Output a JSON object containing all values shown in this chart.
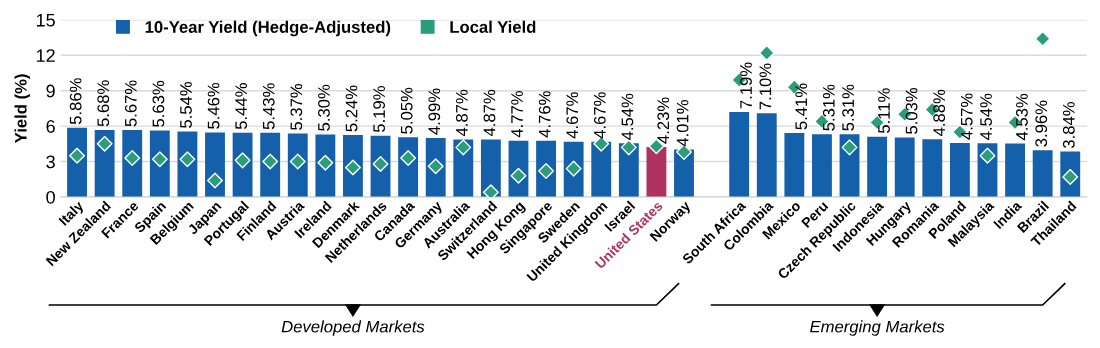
{
  "chart_data": {
    "type": "bar",
    "ylabel": "Yield (%)",
    "categories": [
      "Italy",
      "New Zealand",
      "France",
      "Spain",
      "Belgium",
      "Japan",
      "Portugal",
      "Finland",
      "Austria",
      "Ireland",
      "Denmark",
      "Netherlands",
      "Canada",
      "Germany",
      "Australia",
      "Switzerland",
      "Hong Kong",
      "Singapore",
      "Sweden",
      "United Kingdom",
      "Israel",
      "United States",
      "Norway",
      null,
      "South Africa",
      "Colombia",
      "Mexico",
      "Peru",
      "Czech Republic",
      "Indonesia",
      "Hungary",
      "Romania",
      "Poland",
      "Malaysia",
      "India",
      "Brazil",
      "Thailand"
    ],
    "series": [
      {
        "name": "10-Year Yield (Hedge-Adjusted)",
        "color": "#1560ab",
        "colors": [
          "#1560ab",
          "#1560ab",
          "#1560ab",
          "#1560ab",
          "#1560ab",
          "#1560ab",
          "#1560ab",
          "#1560ab",
          "#1560ab",
          "#1560ab",
          "#1560ab",
          "#1560ab",
          "#1560ab",
          "#1560ab",
          "#1560ab",
          "#1560ab",
          "#1560ab",
          "#1560ab",
          "#1560ab",
          "#1560ab",
          "#1560ab",
          "#b0325e",
          "#1560ab",
          null,
          "#1560ab",
          "#1560ab",
          "#1560ab",
          "#1560ab",
          "#1560ab",
          "#1560ab",
          "#1560ab",
          "#1560ab",
          "#1560ab",
          "#1560ab",
          "#1560ab",
          "#1560ab",
          "#1560ab"
        ],
        "values": [
          5.86,
          5.68,
          5.67,
          5.63,
          5.54,
          5.46,
          5.44,
          5.43,
          5.37,
          5.3,
          5.24,
          5.19,
          5.05,
          4.99,
          4.87,
          4.87,
          4.77,
          4.76,
          4.67,
          4.67,
          4.54,
          4.23,
          4.01,
          null,
          7.19,
          7.1,
          5.41,
          5.31,
          5.31,
          5.11,
          5.03,
          4.88,
          4.57,
          4.54,
          4.53,
          3.96,
          3.84
        ],
        "value_labels": [
          "5.86%",
          "5.68%",
          "5.67%",
          "5.63%",
          "5.54%",
          "5.46%",
          "5.44%",
          "5.43%",
          "5.37%",
          "5.30%",
          "5.24%",
          "5.19%",
          "5.05%",
          "4.99%",
          "4.87%",
          "4.87%",
          "4.77%",
          "4.76%",
          "4.67%",
          "4.67%",
          "4.54%",
          "4.23%",
          "4.01%",
          null,
          "7.19%",
          "7.10%",
          "5.41%",
          "5.31%",
          "5.31%",
          "5.11%",
          "5.03%",
          "4.88%",
          "4.57%",
          "4.54%",
          "4.53%",
          "3.96%",
          "3.84%"
        ]
      },
      {
        "name": "Local Yield",
        "type": "scatter",
        "color": "#2a9d7c",
        "marker": "diamond",
        "values": [
          3.5,
          4.5,
          3.3,
          3.2,
          3.2,
          1.4,
          3.1,
          3.0,
          3.0,
          2.9,
          2.5,
          2.8,
          3.3,
          2.6,
          4.2,
          0.4,
          1.8,
          2.2,
          2.4,
          4.5,
          4.2,
          4.3,
          3.8,
          null,
          9.9,
          12.2,
          9.3,
          6.4,
          4.2,
          6.3,
          7.0,
          7.4,
          5.5,
          3.5,
          6.3,
          13.4,
          1.7
        ]
      }
    ],
    "ylim": [
      0,
      15
    ],
    "yticks": [
      0,
      3,
      6,
      9,
      12,
      15
    ],
    "grid": "y",
    "legend": "top left",
    "annotations": [
      "Developed Markets",
      "Emerging Markets"
    ]
  }
}
